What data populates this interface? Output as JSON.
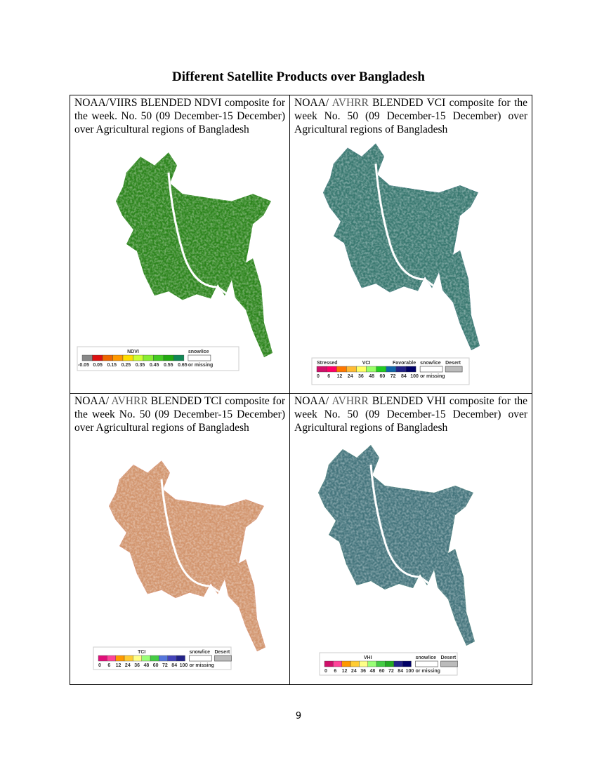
{
  "title": "Different Satellite Products over Bangladesh",
  "cells": [
    {
      "caption": [
        "NOAA/VIIRS BLENDED NDVI composite for the week. No. 50 (09 December-15 December) over Agricultural regions of Bangladesh"
      ],
      "legend": {
        "title": "NDVI",
        "scale": [
          "-0.05",
          "0.05",
          "0.15",
          "0.25",
          "0.35",
          "0.45",
          "0.55",
          "0.65"
        ],
        "missing": [
          "snow/ice",
          "or missing"
        ]
      }
    },
    {
      "caption": [
        "NOAA/ ",
        "AVHRR",
        " BLENDED VCI composite for the week No. 50 (09 December-15 December) over Agricultural regions of Bangladesh"
      ],
      "legend": {
        "low": "Stressed",
        "title": "VCI",
        "high": "Favorable",
        "scale": [
          "0",
          "6",
          "12",
          "24",
          "36",
          "48",
          "60",
          "72",
          "84",
          "100"
        ],
        "missing": [
          "snow/ice",
          "or missing"
        ],
        "desert": "Desert"
      }
    },
    {
      "caption": [
        "NOAA/ ",
        "AVHRR",
        " BLENDED TCI composite for the week No. 50 (09 December-15 December) over Agricultural regions of Bangladesh"
      ],
      "legend": {
        "title": "TCI",
        "scale": [
          "0",
          "6",
          "12",
          "24",
          "36",
          "48",
          "60",
          "72",
          "84",
          "100"
        ],
        "missing": [
          "snow/ice",
          "or missing"
        ],
        "desert": "Desert"
      }
    },
    {
      "caption": [
        "NOAA/ ",
        "AVHRR",
        " BLENDED VHI composite for the week No. 50 (09 December-15 December) over Agricultural regions of Bangladesh"
      ],
      "legend": {
        "title": "VHI",
        "scale": [
          "0",
          "6",
          "12",
          "24",
          "36",
          "48",
          "60",
          "72",
          "84",
          "100"
        ],
        "missing": [
          "snow/ice",
          "or missing"
        ],
        "desert": "Desert"
      }
    }
  ],
  "page_number": "9"
}
